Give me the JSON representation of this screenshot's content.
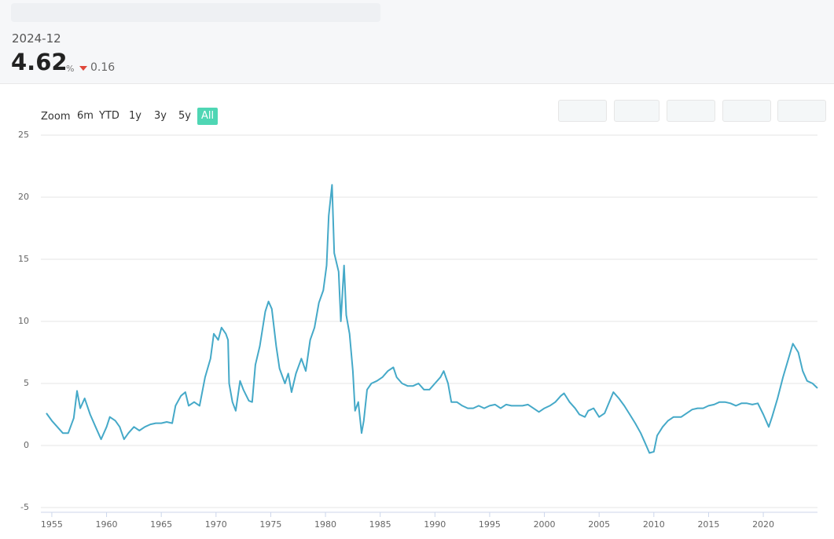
{
  "header": {
    "date": "2024-12",
    "value": 4.62,
    "unit": "%",
    "change": 0.16
  },
  "range_selector": {
    "label": "Zoom",
    "buttons": [
      "6m",
      "YTD",
      "1y",
      "3y",
      "5y",
      "All"
    ],
    "selected": 5
  },
  "chart_data": {
    "type": "line",
    "color": "#45a9c8",
    "grid": true,
    "xlim": [
      1954,
      2024.95
    ],
    "xticks": [
      1955,
      1960,
      1965,
      1970,
      1975,
      1980,
      1985,
      1990,
      1995,
      2000,
      2005,
      2010,
      2015,
      2020
    ],
    "ylim": [
      -5,
      25
    ],
    "yticks": [
      -5,
      0,
      5,
      10,
      15,
      20,
      25
    ],
    "x": [
      1954.5,
      1955,
      1955.5,
      1956,
      1956.5,
      1957,
      1957.3,
      1957.6,
      1958,
      1958.5,
      1959,
      1959.5,
      1960,
      1960.3,
      1960.8,
      1961.2,
      1961.6,
      1962,
      1962.5,
      1963,
      1963.5,
      1964,
      1964.5,
      1965,
      1965.5,
      1966,
      1966.3,
      1966.8,
      1967.2,
      1967.5,
      1968,
      1968.5,
      1969,
      1969.5,
      1969.8,
      1970.2,
      1970.5,
      1970.9,
      1971.1,
      1971.2,
      1971.5,
      1971.8,
      1972.2,
      1972.5,
      1973,
      1973.3,
      1973.6,
      1974,
      1974.5,
      1974.8,
      1975.1,
      1975.5,
      1975.8,
      1976.3,
      1976.6,
      1976.9,
      1977.3,
      1977.8,
      1978.2,
      1978.6,
      1979,
      1979.4,
      1979.8,
      1980.1,
      1980.3,
      1980.6,
      1980.8,
      1981.2,
      1981.4,
      1981.6,
      1981.7,
      1981.9,
      1982.2,
      1982.5,
      1982.7,
      1983,
      1983.3,
      1983.5,
      1983.8,
      1984.2,
      1984.7,
      1985.2,
      1985.7,
      1986.2,
      1986.5,
      1987,
      1987.5,
      1988,
      1988.5,
      1989,
      1989.5,
      1990,
      1990.5,
      1990.8,
      1991.2,
      1991.5,
      1992,
      1992.5,
      1993,
      1993.5,
      1994,
      1994.5,
      1995,
      1995.5,
      1996,
      1996.5,
      1997,
      1997.5,
      1998,
      1998.5,
      1999,
      1999.5,
      2000,
      2000.5,
      2001,
      2001.5,
      2001.8,
      2002.3,
      2002.8,
      2003.2,
      2003.7,
      2004,
      2004.5,
      2005,
      2005.5,
      2006.3,
      2006.8,
      2007.3,
      2007.8,
      2008.3,
      2008.8,
      2009.2,
      2009.6,
      2010,
      2010.3,
      2010.8,
      2011.3,
      2011.8,
      2012.5,
      2013,
      2013.5,
      2014,
      2014.5,
      2015,
      2015.5,
      2016,
      2016.5,
      2017,
      2017.5,
      2018,
      2018.5,
      2019,
      2019.5,
      2020,
      2020.5,
      2020.8,
      2021.3,
      2021.8,
      2022.3,
      2022.7,
      2023.2,
      2023.6,
      2024,
      2024.5,
      2024.95
    ],
    "values": [
      2.6,
      2.0,
      1.5,
      1.0,
      1.0,
      2.2,
      4.4,
      3.0,
      3.8,
      2.5,
      1.5,
      0.5,
      1.5,
      2.3,
      2.0,
      1.5,
      0.5,
      1.0,
      1.5,
      1.2,
      1.5,
      1.7,
      1.8,
      1.8,
      1.9,
      1.8,
      3.2,
      4.0,
      4.3,
      3.2,
      3.5,
      3.2,
      5.5,
      7.0,
      9.0,
      8.5,
      9.5,
      9.0,
      8.5,
      5.0,
      3.5,
      2.8,
      5.2,
      4.5,
      3.6,
      3.5,
      6.5,
      8.0,
      10.8,
      11.6,
      11.0,
      8.0,
      6.2,
      5.0,
      5.8,
      4.3,
      5.8,
      7.0,
      6.0,
      8.5,
      9.5,
      11.5,
      12.5,
      14.5,
      18.5,
      21.0,
      15.5,
      14.0,
      10.0,
      13.0,
      14.5,
      10.5,
      9.0,
      6.0,
      2.8,
      3.5,
      1.0,
      2.0,
      4.5,
      5.0,
      5.2,
      5.5,
      6.0,
      6.3,
      5.5,
      5.0,
      4.8,
      4.8,
      5.0,
      4.5,
      4.5,
      5.0,
      5.5,
      6.0,
      5.0,
      3.5,
      3.5,
      3.2,
      3.0,
      3.0,
      3.2,
      3.0,
      3.2,
      3.3,
      3.0,
      3.3,
      3.2,
      3.2,
      3.2,
      3.3,
      3.0,
      2.7,
      3.0,
      3.2,
      3.5,
      4.0,
      4.2,
      3.5,
      3.0,
      2.5,
      2.3,
      2.8,
      3.0,
      2.3,
      2.6,
      4.3,
      3.8,
      3.2,
      2.5,
      1.8,
      1.0,
      0.2,
      -0.6,
      -0.5,
      0.8,
      1.5,
      2.0,
      2.3,
      2.3,
      2.6,
      2.9,
      3.0,
      3.0,
      3.2,
      3.3,
      3.5,
      3.5,
      3.4,
      3.2,
      3.4,
      3.4,
      3.3,
      3.4,
      2.5,
      1.5,
      2.3,
      3.8,
      5.5,
      7.0,
      8.2,
      7.5,
      6.0,
      5.2,
      5.0,
      4.62
    ]
  }
}
